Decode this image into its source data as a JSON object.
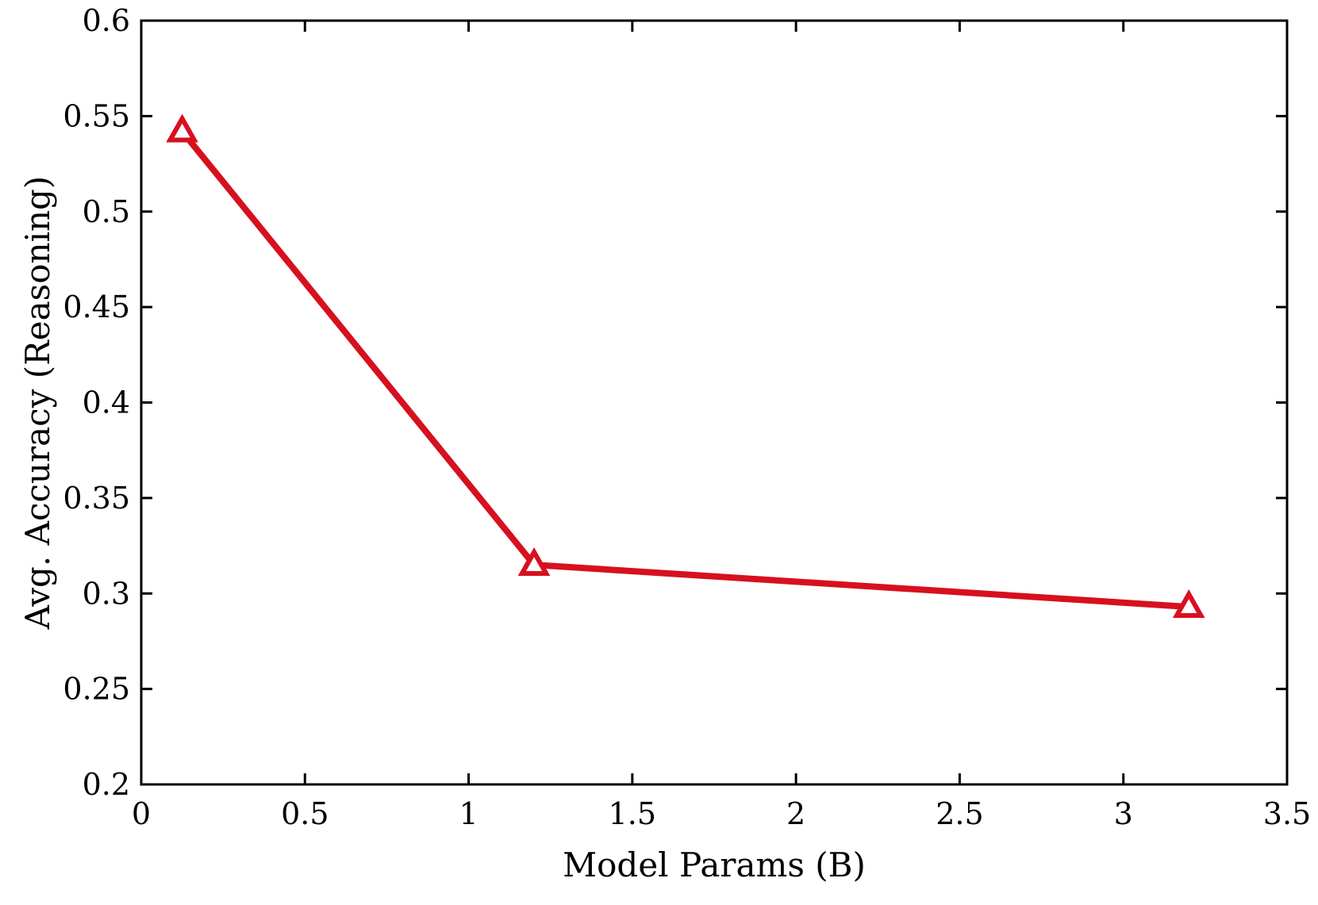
{
  "chart_data": {
    "type": "line",
    "title": "",
    "xlabel": "Model Params (B)",
    "ylabel": "Avg. Accuracy (Reasoning)",
    "xlim": [
      0,
      3.5
    ],
    "ylim": [
      0.2,
      0.6
    ],
    "xticks": [
      0,
      0.5,
      1,
      1.5,
      2,
      2.5,
      3,
      3.5
    ],
    "xtick_labels": [
      "0",
      "0.5",
      "1",
      "1.5",
      "2",
      "2.5",
      "3",
      "3.5"
    ],
    "yticks": [
      0.2,
      0.25,
      0.3,
      0.35,
      0.4,
      0.45,
      0.5,
      0.55,
      0.6
    ],
    "ytick_labels": [
      "0.2",
      "0.25",
      "0.3",
      "0.35",
      "0.4",
      "0.45",
      "0.5",
      "0.55",
      "0.6"
    ],
    "grid": false,
    "legend": "none",
    "series": [
      {
        "x": [
          0.125,
          1.2,
          3.2
        ],
        "y": [
          0.542,
          0.315,
          0.293
        ],
        "color": "#d7101f",
        "marker": "triangle-open"
      }
    ]
  }
}
